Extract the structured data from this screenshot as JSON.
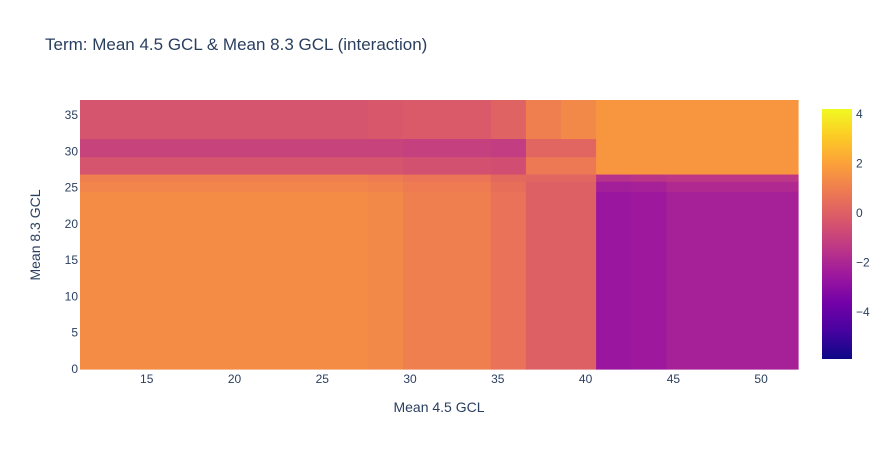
{
  "chart_data": {
    "type": "heatmap",
    "title": "Term: Mean 4.5 GCL & Mean 8.3 GCL (interaction)",
    "xlabel": "Mean 4.5 GCL",
    "ylabel": "Mean 8.3 GCL",
    "xlim": [
      11.2,
      52.1
    ],
    "ylim": [
      0,
      37.1
    ],
    "x_ticks": [
      15,
      20,
      25,
      30,
      35,
      40,
      45,
      50
    ],
    "y_ticks": [
      0,
      5,
      10,
      15,
      20,
      25,
      30,
      35
    ],
    "x_edges": [
      11.2,
      27.6,
      29.6,
      34.6,
      36.6,
      38.6,
      40.6,
      42.6,
      44.6,
      52.1
    ],
    "y_edges": [
      0,
      24.5,
      25.9,
      26.9,
      29.3,
      31.8,
      37.1
    ],
    "z": [
      [
        1.4,
        1.3,
        1.0,
        0.6,
        0.0,
        0.0,
        -2.6,
        -2.5,
        -2.2
      ],
      [
        1.2,
        1.1,
        0.9,
        0.5,
        0.0,
        0.0,
        -2.3,
        -2.2,
        -1.9
      ],
      [
        1.0,
        0.9,
        0.7,
        0.3,
        0.2,
        0.2,
        -1.6,
        -1.5,
        -1.4
      ],
      [
        -0.4,
        -0.4,
        -0.5,
        -0.6,
        0.8,
        0.8,
        1.7,
        1.7,
        1.7
      ],
      [
        -1.0,
        -1.0,
        -1.1,
        -1.2,
        0.2,
        0.2,
        1.7,
        1.7,
        1.7
      ],
      [
        -0.4,
        -0.3,
        -0.2,
        0.1,
        1.0,
        1.3,
        1.7,
        1.7,
        1.7
      ]
    ],
    "colorscale": "plasma",
    "colorbar": {
      "zmin": -5.9,
      "zmax": 4.2,
      "ticks": [
        4,
        2,
        0,
        -2,
        -4
      ],
      "tick_labels": [
        "4",
        "2",
        "0",
        "−2",
        "−4"
      ]
    }
  }
}
